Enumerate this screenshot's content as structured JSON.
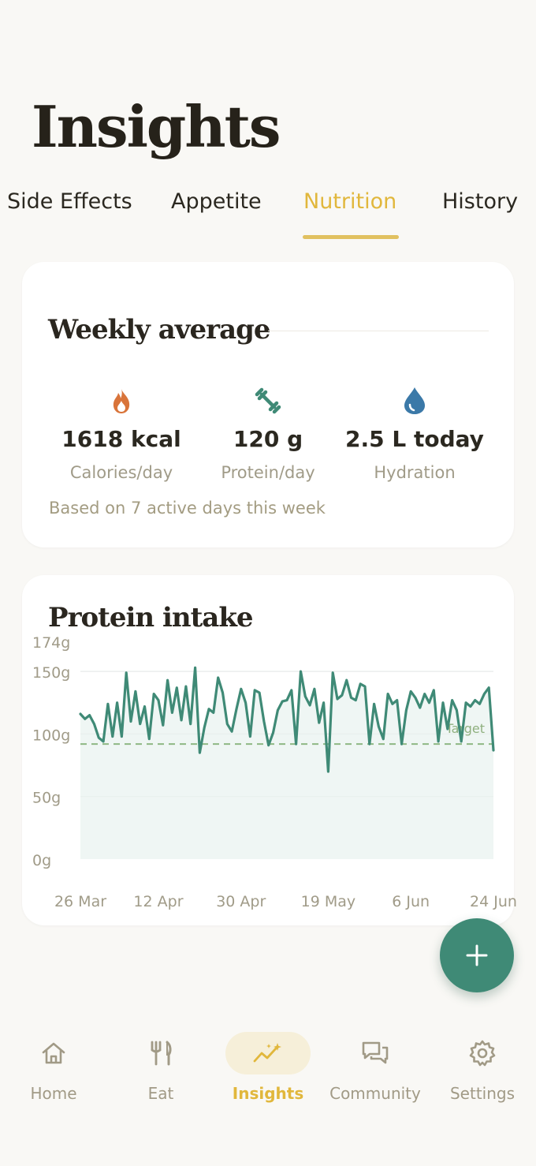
{
  "page": {
    "title": "Insights"
  },
  "tabs": [
    {
      "label": "Side Effects",
      "active": false
    },
    {
      "label": "Appetite",
      "active": false
    },
    {
      "label": "Nutrition",
      "active": true
    },
    {
      "label": "History",
      "active": false
    }
  ],
  "weekly": {
    "title": "Weekly average",
    "stats": [
      {
        "icon": "flame-icon",
        "value": "1618 kcal",
        "label": "Calories/day",
        "color": "#d9743a"
      },
      {
        "icon": "dumbbell-icon",
        "value": "120 g",
        "label": "Protein/day",
        "color": "#3f8a76"
      },
      {
        "icon": "water-drop-icon",
        "value": "2.5 L today",
        "label": "Hydration",
        "color": "#3b79a8"
      }
    ],
    "footnote": "Based on 7 active days this week"
  },
  "protein": {
    "title": "Protein intake",
    "target_label": "Target"
  },
  "chart_data": {
    "type": "line",
    "title": "Protein intake",
    "xlabel": "",
    "ylabel": "",
    "ylim": [
      0,
      174
    ],
    "y_ticks": [
      "0g",
      "50g",
      "100g",
      "150g",
      "174g"
    ],
    "y_tick_values": [
      0,
      50,
      100,
      150,
      174
    ],
    "x_ticks": [
      "26 Mar",
      "12 Apr",
      "30 Apr",
      "19 May",
      "6 Jun",
      "24 Jun"
    ],
    "x_tick_days": [
      0,
      17,
      35,
      54,
      72,
      90
    ],
    "target": 92,
    "grid": true,
    "series": [
      {
        "values": [
          116,
          112,
          115,
          108,
          97,
          94,
          124,
          98,
          125,
          98,
          149,
          110,
          134,
          108,
          122,
          96,
          132,
          127,
          107,
          143,
          117,
          137,
          111,
          138,
          108,
          153,
          85,
          105,
          120,
          117,
          145,
          133,
          108,
          102,
          120,
          136,
          125,
          98,
          135,
          133,
          110,
          91,
          101,
          119,
          126,
          127,
          135,
          92,
          150,
          130,
          123,
          136,
          109,
          125,
          70,
          149,
          128,
          131,
          143,
          129,
          127,
          140,
          138,
          92,
          124,
          106,
          96,
          132,
          124,
          127,
          92,
          119,
          134,
          129,
          121,
          132,
          125,
          135,
          94,
          125,
          104,
          127,
          119,
          94,
          125,
          122,
          127,
          124,
          132,
          137,
          87
        ]
      }
    ],
    "color": "#3f8a76"
  },
  "fab": {
    "icon": "plus-icon"
  },
  "nav": [
    {
      "icon": "home-icon",
      "label": "Home",
      "active": false
    },
    {
      "icon": "fork-knife-icon",
      "label": "Eat",
      "active": false
    },
    {
      "icon": "sparkle-trend-icon",
      "label": "Insights",
      "active": true
    },
    {
      "icon": "chat-bubbles-icon",
      "label": "Community",
      "active": false
    },
    {
      "icon": "gear-icon",
      "label": "Settings",
      "active": false
    }
  ],
  "colors": {
    "accent": "#e1b73c",
    "primary": "#3f8a76",
    "background": "#f9f8f5"
  }
}
